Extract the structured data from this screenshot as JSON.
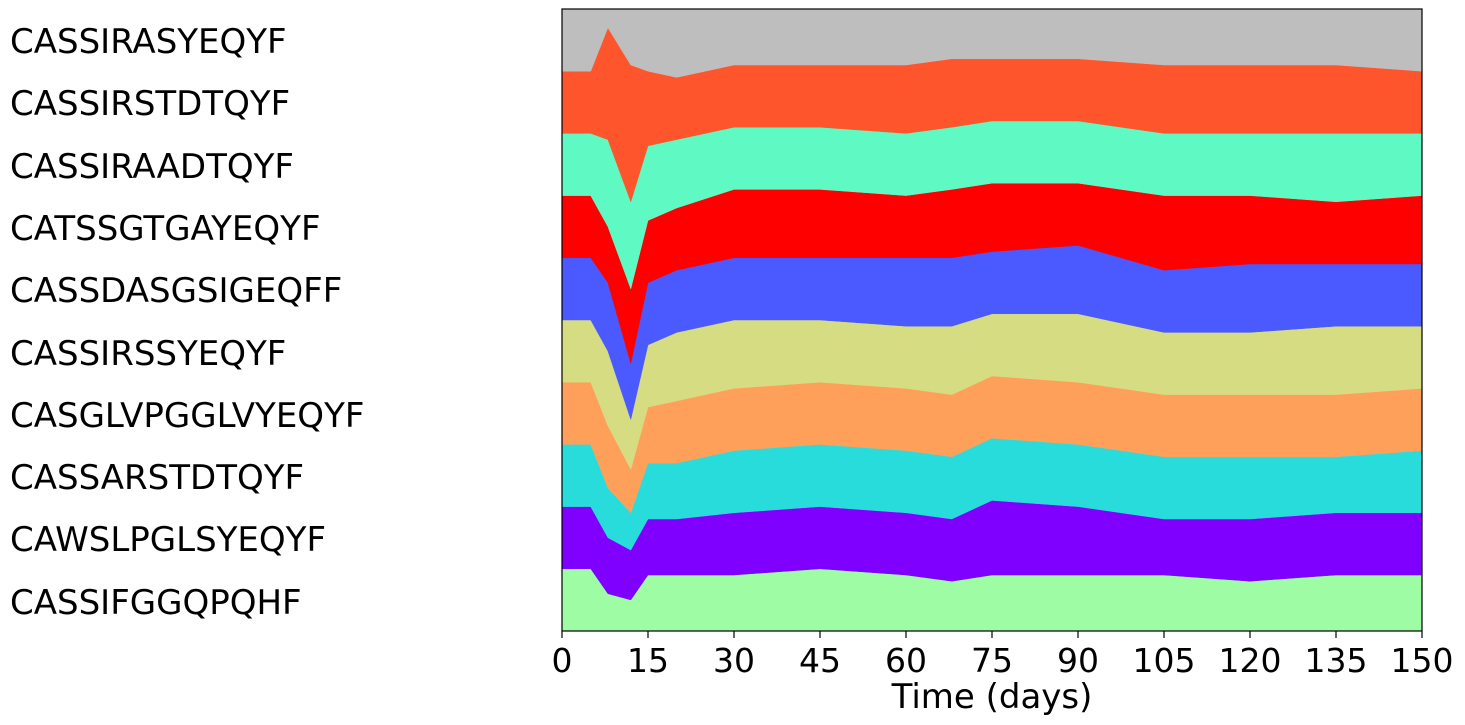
{
  "chart_data": {
    "type": "area",
    "stacked": true,
    "normalized": true,
    "title": "",
    "xlabel": "Time (days)",
    "ylabel": "",
    "xlim": [
      0,
      150
    ],
    "xticks": [
      0,
      15,
      30,
      45,
      60,
      75,
      90,
      105,
      120,
      135,
      150
    ],
    "ylim": [
      0,
      1
    ],
    "x": [
      0,
      5,
      8,
      12,
      15,
      20,
      30,
      45,
      60,
      68,
      75,
      90,
      105,
      120,
      135,
      150
    ],
    "series_order_bottom_to_top": [
      "CASSIFGGQPQHF",
      "CAWSLPGLSYEQYF",
      "CASSARSTDTQYF",
      "CASGLVPGGLVYEQYF",
      "CASSIRSSYEQYF",
      "CASSDASGSIGEQFF",
      "CATSSGTGAYEQYF",
      "CASSIRAADTQYF",
      "CASSIRSTDTQYF",
      "CASSIRASYEQYF"
    ],
    "series": [
      {
        "name": "CASSIFGGQPQHF",
        "color": "#9efca4",
        "values": [
          0.1,
          0.1,
          0.06,
          0.05,
          0.09,
          0.09,
          0.09,
          0.1,
          0.09,
          0.08,
          0.09,
          0.09,
          0.09,
          0.08,
          0.09,
          0.09
        ]
      },
      {
        "name": "CAWSLPGLSYEQYF",
        "color": "#8000ff",
        "values": [
          0.1,
          0.1,
          0.09,
          0.08,
          0.09,
          0.09,
          0.1,
          0.1,
          0.1,
          0.1,
          0.12,
          0.11,
          0.09,
          0.1,
          0.1,
          0.1
        ]
      },
      {
        "name": "CASSARSTDTQYF",
        "color": "#28dcdc",
        "values": [
          0.1,
          0.1,
          0.08,
          0.06,
          0.09,
          0.09,
          0.1,
          0.1,
          0.1,
          0.1,
          0.1,
          0.1,
          0.1,
          0.1,
          0.09,
          0.1
        ]
      },
      {
        "name": "CASGLVPGGLVYEQYF",
        "color": "#ffa05a",
        "values": [
          0.1,
          0.1,
          0.1,
          0.07,
          0.09,
          0.1,
          0.1,
          0.1,
          0.1,
          0.1,
          0.1,
          0.1,
          0.1,
          0.1,
          0.1,
          0.1
        ]
      },
      {
        "name": "CASSIRSSYEQYF",
        "color": "#d6dc82",
        "values": [
          0.1,
          0.1,
          0.12,
          0.08,
          0.1,
          0.11,
          0.11,
          0.1,
          0.1,
          0.11,
          0.1,
          0.11,
          0.1,
          0.1,
          0.11,
          0.1
        ]
      },
      {
        "name": "CASSDASGSIGEQFF",
        "color": "#4b5aff",
        "values": [
          0.1,
          0.1,
          0.11,
          0.09,
          0.1,
          0.1,
          0.1,
          0.1,
          0.11,
          0.11,
          0.1,
          0.11,
          0.1,
          0.11,
          0.1,
          0.1
        ]
      },
      {
        "name": "CATSSGTGAYEQYF",
        "color": "#ff0000",
        "values": [
          0.1,
          0.1,
          0.09,
          0.12,
          0.1,
          0.1,
          0.11,
          0.11,
          0.1,
          0.11,
          0.11,
          0.1,
          0.12,
          0.11,
          0.1,
          0.11
        ]
      },
      {
        "name": "CASSIRAADTQYF",
        "color": "#5ffac3",
        "values": [
          0.1,
          0.1,
          0.14,
          0.14,
          0.12,
          0.11,
          0.1,
          0.1,
          0.1,
          0.1,
          0.1,
          0.1,
          0.1,
          0.1,
          0.11,
          0.1
        ]
      },
      {
        "name": "CASSIRSTDTQYF",
        "color": "#ff552d",
        "values": [
          0.1,
          0.1,
          0.18,
          0.22,
          0.12,
          0.1,
          0.1,
          0.1,
          0.11,
          0.11,
          0.1,
          0.1,
          0.11,
          0.11,
          0.11,
          0.1
        ]
      },
      {
        "name": "CASSIRASYEQYF",
        "color": "#bebebe",
        "values": [
          0.1,
          0.1,
          0.03,
          0.09,
          0.1,
          0.11,
          0.09,
          0.09,
          0.09,
          0.08,
          0.08,
          0.08,
          0.09,
          0.09,
          0.09,
          0.1
        ]
      }
    ],
    "legend_labels_top_to_bottom": [
      "CASSIRASYEQYF",
      "CASSIRSTDTQYF",
      "CASSIRAADTQYF",
      "CATSSGTGAYEQYF",
      "CASSDASGSIGEQFF",
      "CASSIRSSYEQYF",
      "CASGLVPGGLVYEQYF",
      "CASSARSTDTQYF",
      "CAWSLPGLSYEQYF",
      "CASSIFGGQPQHF"
    ],
    "legend_placement": "left",
    "grid": false
  }
}
